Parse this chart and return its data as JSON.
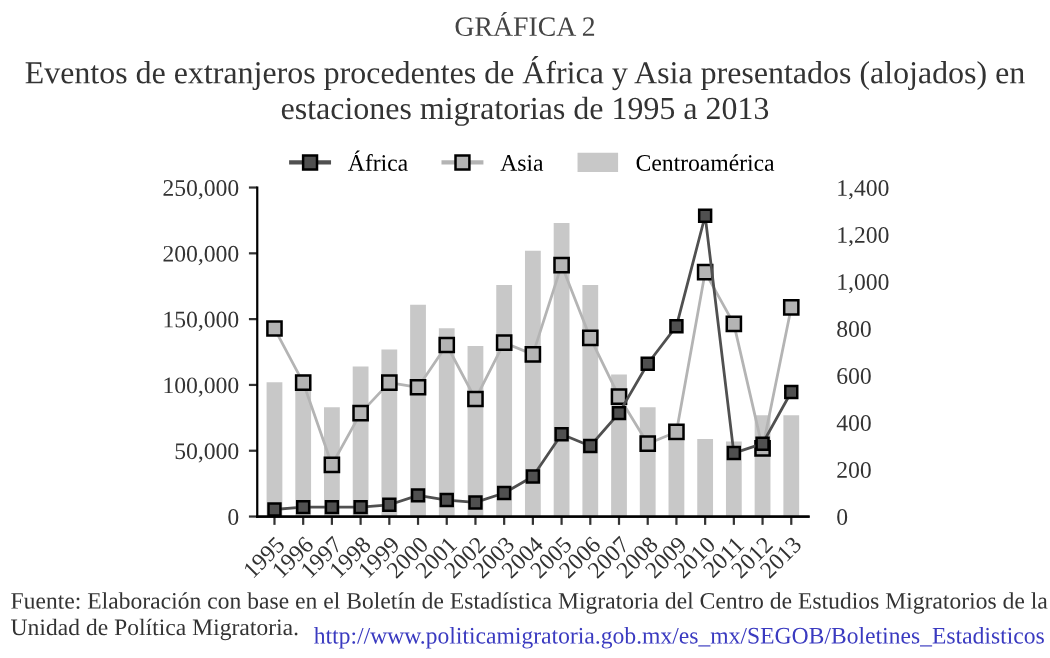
{
  "chart_data": {
    "type": "bar",
    "title": "GRÁFICA 2",
    "subtitle": "Eventos de extranjeros procedentes de África y Asia presentados (alojados) en estaciones migratorias de 1995 a 2013",
    "categories": [
      "1995",
      "1996",
      "1997",
      "1998",
      "1999",
      "2000",
      "2001",
      "2002",
      "2003",
      "2004",
      "2005",
      "2006",
      "2007",
      "2008",
      "2009",
      "2010",
      "2011",
      "2012",
      "2013"
    ],
    "series": [
      {
        "name": "África",
        "type": "line",
        "axis": "y2",
        "color": "#505050",
        "marker": "square",
        "values": [
          30,
          40,
          40,
          40,
          50,
          90,
          70,
          60,
          100,
          170,
          350,
          300,
          440,
          650,
          810,
          1280,
          270,
          310,
          530
        ]
      },
      {
        "name": "Asia",
        "type": "line",
        "axis": "y2",
        "color": "#b4b4b4",
        "marker": "square",
        "values": [
          800,
          570,
          220,
          440,
          570,
          550,
          730,
          500,
          740,
          690,
          1070,
          760,
          510,
          310,
          360,
          1040,
          820,
          290,
          890
        ]
      },
      {
        "name": "Centroamérica",
        "color": "#c8c8c8",
        "values": [
          102000,
          108000,
          83000,
          114000,
          127000,
          161000,
          143000,
          129500,
          176000,
          202000,
          223000,
          176000,
          108000,
          83000,
          58000,
          59000,
          57000,
          77000,
          77000
        ]
      }
    ],
    "ylim": [
      0,
      250000
    ],
    "yticks": [
      0,
      {
        "value": 50000,
        "label": "50,000"
      },
      {
        "value": 100000,
        "label": "100,000"
      },
      {
        "value": 150000,
        "label": "150,000"
      },
      {
        "value": 200000,
        "label": "200,000"
      },
      {
        "value": 250000,
        "label": "250,000"
      }
    ],
    "y2lim": [
      0,
      1400
    ],
    "y2ticks": [
      0,
      200,
      400,
      600,
      800,
      {
        "value": 1000,
        "label": "1,000"
      },
      {
        "value": 1200,
        "label": "1,200"
      },
      {
        "value": 1400,
        "label": "1,400"
      }
    ],
    "legend": "top",
    "grid": false,
    "annotations": [
      "Fuente: Elaboración con base en el Boletín de Estadística Migratoria del Centro de Estudios Migratorios de la Unidad de Política Migratoria.",
      "http://www.politicamigratoria.gob.mx/es_mx/SEGOB/Boletines_Estadisticos"
    ]
  }
}
